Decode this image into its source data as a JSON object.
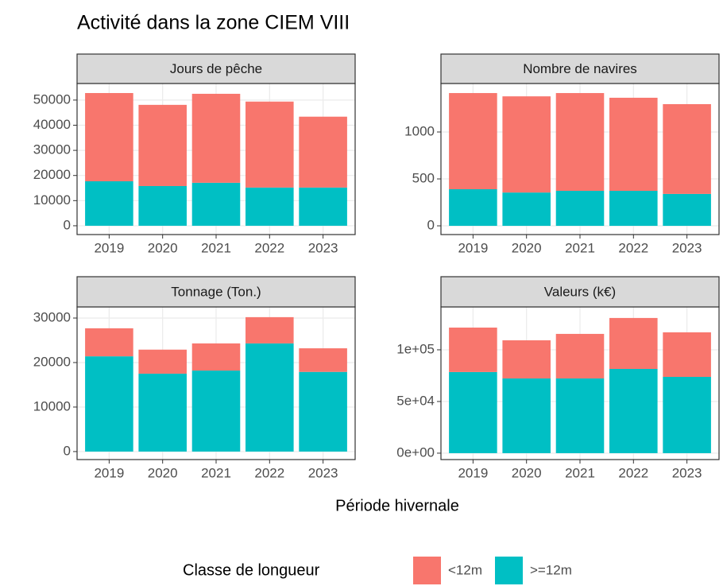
{
  "title": "Activité dans la zone CIEM VIII",
  "x_label": "Période hivernale",
  "legend_title": "Classe de longueur",
  "chart_data": [
    {
      "type": "bar",
      "stacked": true,
      "title": "Jours de pêche",
      "categories": [
        "2019",
        "2020",
        "2021",
        "2022",
        "2023"
      ],
      "series": [
        {
          "name": "<12m",
          "color": "#f8766d",
          "values": [
            35100,
            32300,
            35400,
            34200,
            28200
          ]
        },
        {
          "name": ">=12m",
          "color": "#00bfc4",
          "values": [
            17700,
            15800,
            17100,
            15200,
            15200
          ]
        }
      ],
      "ylim": [
        -3500,
        56600
      ],
      "yticks": [
        0,
        10000,
        20000,
        30000,
        40000,
        50000
      ],
      "grid": true
    },
    {
      "type": "bar",
      "stacked": true,
      "title": "Nombre de navires",
      "categories": [
        "2019",
        "2020",
        "2021",
        "2022",
        "2023"
      ],
      "series": [
        {
          "name": "<12m",
          "color": "#f8766d",
          "values": [
            1025,
            1025,
            1042,
            992,
            957
          ]
        },
        {
          "name": ">=12m",
          "color": "#00bfc4",
          "values": [
            390,
            355,
            373,
            373,
            340
          ]
        }
      ],
      "ylim": [
        -93,
        1517
      ],
      "yticks": [
        0,
        500,
        1000
      ],
      "grid": true
    },
    {
      "type": "bar",
      "stacked": true,
      "title": "Tonnage (Ton.)",
      "categories": [
        "2019",
        "2020",
        "2021",
        "2022",
        "2023"
      ],
      "series": [
        {
          "name": "<12m",
          "color": "#f8766d",
          "values": [
            6300,
            5400,
            6100,
            5900,
            5300
          ]
        },
        {
          "name": ">=12m",
          "color": "#00bfc4",
          "values": [
            21400,
            17500,
            18200,
            24300,
            17900
          ]
        }
      ],
      "ylim": [
        -1800,
        32500
      ],
      "yticks": [
        0,
        10000,
        20000,
        30000
      ],
      "grid": true
    },
    {
      "type": "bar",
      "stacked": true,
      "title": "Valeurs (k€)",
      "categories": [
        "2019",
        "2020",
        "2021",
        "2022",
        "2023"
      ],
      "series": [
        {
          "name": "<12m",
          "color": "#f8766d",
          "values": [
            43000,
            36900,
            43100,
            49300,
            43100
          ]
        },
        {
          "name": ">=12m",
          "color": "#00bfc4",
          "values": [
            78500,
            72300,
            72300,
            81500,
            73800
          ]
        }
      ],
      "ylim": [
        -6200,
        141500
      ],
      "yticks": [
        {
          "value": 0,
          "label": "0e+00"
        },
        {
          "value": 50000,
          "label": "5e+04"
        },
        {
          "value": 100000,
          "label": "1e+05"
        }
      ],
      "grid": true
    }
  ]
}
